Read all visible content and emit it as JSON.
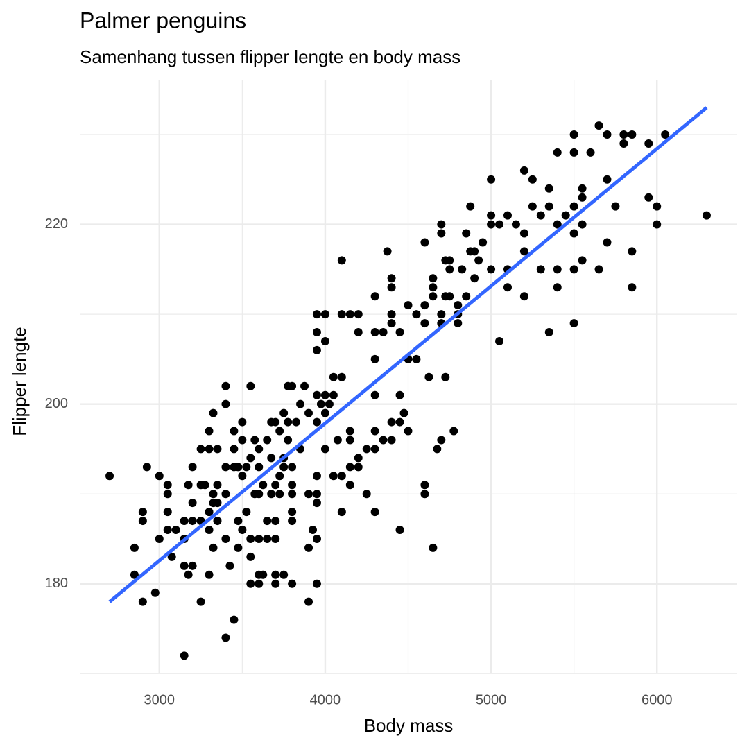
{
  "chart_data": {
    "type": "scatter",
    "title": "Palmer penguins",
    "subtitle": "Samenhang tussen flipper lengte en body mass",
    "x_label": "Body mass",
    "y_label": "Flipper lengte",
    "color": "#000000",
    "grid": true,
    "xlim": [
      2520,
      6480
    ],
    "ylim": [
      170.1,
      236.1
    ],
    "xticks": [
      3000,
      4000,
      5000,
      6000
    ],
    "yticks": [
      180,
      200,
      220
    ],
    "minor_xticks": [
      3500,
      4500,
      5500
    ],
    "minor_yticks": [
      170,
      190,
      210,
      230
    ],
    "fit_line": {
      "color": "#3366ff",
      "x": [
        2700,
        6300
      ],
      "y": [
        178,
        233
      ]
    },
    "x": [
      2700,
      2850,
      2850,
      2900,
      2900,
      2900,
      2925,
      2975,
      3000,
      3000,
      3050,
      3050,
      3050,
      3050,
      3075,
      3100,
      3150,
      3150,
      3150,
      3150,
      3175,
      3175,
      3200,
      3200,
      3200,
      3200,
      3250,
      3250,
      3250,
      3250,
      3275,
      3300,
      3300,
      3300,
      3300,
      3300,
      3325,
      3325,
      3325,
      3325,
      3350,
      3350,
      3350,
      3350,
      3400,
      3400,
      3400,
      3400,
      3400,
      3400,
      3425,
      3450,
      3450,
      3450,
      3450,
      3475,
      3475,
      3475,
      3500,
      3500,
      3500,
      3500,
      3525,
      3525,
      3550,
      3550,
      3550,
      3550,
      3550,
      3575,
      3575,
      3600,
      3600,
      3600,
      3600,
      3600,
      3600,
      3625,
      3625,
      3650,
      3650,
      3650,
      3675,
      3675,
      3675,
      3700,
      3700,
      3700,
      3700,
      3700,
      3700,
      3725,
      3725,
      3725,
      3750,
      3750,
      3750,
      3750,
      3775,
      3775,
      3775,
      3800,
      3800,
      3800,
      3800,
      3800,
      3800,
      3800,
      3825,
      3850,
      3850,
      3875,
      3900,
      3900,
      3900,
      3900,
      3925,
      3950,
      3950,
      3950,
      3950,
      3950,
      3950,
      3950,
      3950,
      3950,
      3950,
      3975,
      4000,
      4000,
      4000,
      4000,
      4000,
      4025,
      4050,
      4050,
      4050,
      4075,
      4100,
      4100,
      4100,
      4100,
      4100,
      4150,
      4150,
      4150,
      4150,
      4150,
      4200,
      4200,
      4200,
      4200,
      4250,
      4250,
      4300,
      4300,
      4300,
      4300,
      4300,
      4300,
      4300,
      4350,
      4350,
      4375,
      4400,
      4400,
      4400,
      4400,
      4400,
      4400,
      4450,
      4450,
      4450,
      4450,
      4475,
      4500,
      4500,
      4500,
      4550,
      4550,
      4600,
      4600,
      4600,
      4600,
      4600,
      4625,
      4650,
      4650,
      4650,
      4650,
      4675,
      4700,
      4700,
      4700,
      4700,
      4700,
      4725,
      4725,
      4725,
      4750,
      4750,
      4750,
      4775,
      4800,
      4800,
      4800,
      4825,
      4850,
      4850,
      4875,
      4875,
      4900,
      4900,
      4925,
      4950,
      5000,
      5000,
      5000,
      5000,
      5050,
      5050,
      5100,
      5100,
      5100,
      5150,
      5200,
      5200,
      5200,
      5200,
      5250,
      5250,
      5300,
      5300,
      5350,
      5350,
      5350,
      5400,
      5400,
      5400,
      5400,
      5450,
      5500,
      5500,
      5500,
      5500,
      5500,
      5500,
      5550,
      5550,
      5550,
      5550,
      5600,
      5650,
      5650,
      5700,
      5700,
      5700,
      5750,
      5800,
      5800,
      5850,
      5850,
      5850,
      5950,
      5950,
      6000,
      6000,
      6050,
      6300
    ],
    "values": [
      192,
      184,
      181,
      188,
      187,
      178,
      193,
      179,
      192,
      185,
      191,
      190,
      188,
      186,
      183,
      186,
      185,
      187,
      182,
      172,
      191,
      181,
      193,
      189,
      187,
      182,
      195,
      191,
      187,
      178,
      191,
      197,
      195,
      188,
      186,
      181,
      199,
      190,
      189,
      184,
      195,
      191,
      189,
      187,
      202,
      200,
      193,
      190,
      185,
      174,
      182,
      197,
      195,
      193,
      176,
      193,
      187,
      184,
      198,
      196,
      192,
      186,
      193,
      188,
      202,
      194,
      185,
      183,
      180,
      190,
      196,
      195,
      193,
      190,
      185,
      180,
      181,
      181,
      191,
      196,
      187,
      185,
      198,
      194,
      190,
      198,
      191,
      187,
      185,
      180,
      181,
      197,
      192,
      190,
      199,
      194,
      193,
      181,
      202,
      198,
      196,
      202,
      193,
      191,
      190,
      188,
      187,
      180,
      198,
      200,
      195,
      202,
      199,
      190,
      184,
      178,
      186,
      210,
      208,
      206,
      201,
      198,
      192,
      190,
      189,
      185,
      180,
      200,
      210,
      207,
      201,
      199,
      195,
      200,
      203,
      201,
      192,
      196,
      216,
      210,
      203,
      192,
      188,
      210,
      197,
      196,
      193,
      191,
      210,
      208,
      194,
      193,
      195,
      190,
      212,
      208,
      205,
      201,
      197,
      195,
      188,
      208,
      196,
      217,
      214,
      213,
      210,
      209,
      198,
      196,
      208,
      201,
      198,
      186,
      199,
      211,
      205,
      197,
      210,
      205,
      218,
      211,
      209,
      191,
      190,
      203,
      214,
      213,
      212,
      184,
      195,
      220,
      219,
      210,
      209,
      196,
      216,
      212,
      203,
      216,
      215,
      212,
      197,
      211,
      209,
      210,
      215,
      219,
      212,
      222,
      217,
      217,
      214,
      216,
      218,
      225,
      221,
      220,
      215,
      220,
      207,
      221,
      215,
      213,
      220,
      226,
      219,
      217,
      212,
      225,
      222,
      221,
      215,
      224,
      222,
      208,
      228,
      220,
      215,
      213,
      221,
      230,
      228,
      222,
      219,
      215,
      209,
      224,
      223,
      220,
      216,
      228,
      231,
      215,
      230,
      225,
      218,
      222,
      230,
      229,
      230,
      217,
      213,
      229,
      223,
      222,
      220,
      230,
      221
    ]
  }
}
